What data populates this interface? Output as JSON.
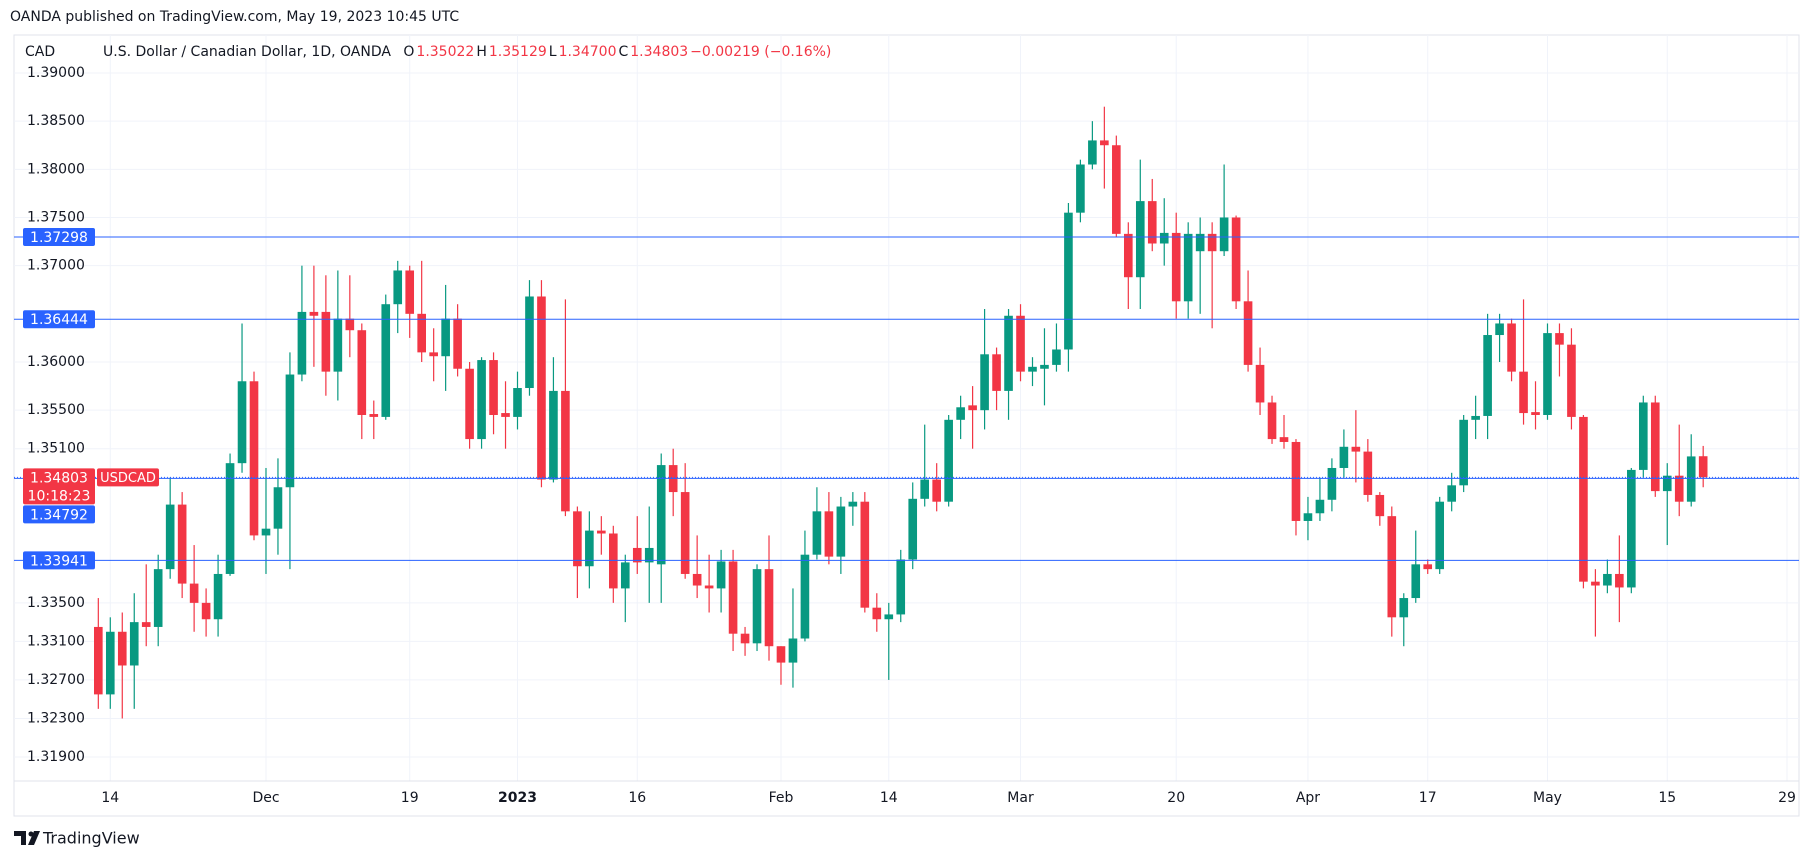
{
  "header": {
    "publisher": "OANDA published on TradingView.com, May 19, 2023 10:45 UTC",
    "currency": "CAD",
    "instrument": "U.S. Dollar / Canadian Dollar, 1D, OANDA",
    "quote": [
      {
        "label": "O",
        "value": "1.35022"
      },
      {
        "label": "H",
        "value": "1.35129"
      },
      {
        "label": "L",
        "value": "1.34700"
      },
      {
        "label": "C",
        "value": "1.34803"
      }
    ],
    "change": "−0.00219 (−0.16%)"
  },
  "footer": {
    "brand": "TradingView"
  },
  "chart_data": {
    "type": "candlestick",
    "up_color": "#089981",
    "down_color": "#f23645",
    "level_color": "#2962ff",
    "grid": true,
    "ylim": [
      1.31651,
      1.39363
    ],
    "xlim": [
      -7.04,
      142.0
    ],
    "yticks": [
      {
        "value": 1.39,
        "label": "1.39000"
      },
      {
        "value": 1.385,
        "label": "1.38500"
      },
      {
        "value": 1.38,
        "label": "1.38000"
      },
      {
        "value": 1.375,
        "label": "1.37500"
      },
      {
        "value": 1.37,
        "label": "1.37000"
      },
      {
        "value": 1.36,
        "label": "1.36000"
      },
      {
        "value": 1.355,
        "label": "1.35500"
      },
      {
        "value": 1.351,
        "label": "1.35100"
      },
      {
        "value": 1.335,
        "label": "1.33500"
      },
      {
        "value": 1.331,
        "label": "1.33100"
      },
      {
        "value": 1.327,
        "label": "1.32700"
      },
      {
        "value": 1.323,
        "label": "1.32300"
      },
      {
        "value": 1.319,
        "label": "1.31900"
      }
    ],
    "xticks": [
      {
        "value": 1,
        "label": "14"
      },
      {
        "value": 14,
        "label": "Dec"
      },
      {
        "value": 26,
        "label": "19"
      },
      {
        "value": 35,
        "label": "2023"
      },
      {
        "value": 45,
        "label": "16"
      },
      {
        "value": 57,
        "label": "Feb"
      },
      {
        "value": 66,
        "label": "14"
      },
      {
        "value": 77,
        "label": "Mar"
      },
      {
        "value": 90,
        "label": "20"
      },
      {
        "value": 101,
        "label": "Apr"
      },
      {
        "value": 111,
        "label": "17"
      },
      {
        "value": 121,
        "label": "May"
      },
      {
        "value": 131,
        "label": "15"
      },
      {
        "value": 141,
        "label": "29"
      }
    ],
    "levels": [
      1.37298,
      1.36444,
      1.34792,
      1.33941
    ],
    "last": {
      "value": 1.34803,
      "symbol": "USDCAD",
      "countdown": "10:18:23"
    },
    "candles": [
      [
        1.3325,
        1.3355,
        1.324,
        1.3255
      ],
      [
        1.3255,
        1.3335,
        1.324,
        1.332
      ],
      [
        1.332,
        1.334,
        1.323,
        1.3285
      ],
      [
        1.3285,
        1.336,
        1.324,
        1.333
      ],
      [
        1.333,
        1.339,
        1.3305,
        1.3325
      ],
      [
        1.3325,
        1.34,
        1.3305,
        1.3385
      ],
      [
        1.3385,
        1.348,
        1.3375,
        1.3452
      ],
      [
        1.3452,
        1.3465,
        1.3355,
        1.337
      ],
      [
        1.337,
        1.341,
        1.332,
        1.335
      ],
      [
        1.335,
        1.3365,
        1.3315,
        1.3333
      ],
      [
        1.3333,
        1.34,
        1.3315,
        1.338
      ],
      [
        1.338,
        1.3505,
        1.3378,
        1.3495
      ],
      [
        1.3495,
        1.364,
        1.3485,
        1.358
      ],
      [
        1.358,
        1.359,
        1.3415,
        1.342
      ],
      [
        1.342,
        1.349,
        1.338,
        1.3427
      ],
      [
        1.3427,
        1.35,
        1.34,
        1.347
      ],
      [
        1.347,
        1.361,
        1.3385,
        1.3587
      ],
      [
        1.3587,
        1.37,
        1.358,
        1.3652
      ],
      [
        1.3652,
        1.37,
        1.3595,
        1.3648
      ],
      [
        1.3652,
        1.369,
        1.3565,
        1.359
      ],
      [
        1.359,
        1.3695,
        1.356,
        1.3645
      ],
      [
        1.3645,
        1.369,
        1.3605,
        1.3633
      ],
      [
        1.3633,
        1.364,
        1.352,
        1.3545
      ],
      [
        1.3546,
        1.356,
        1.352,
        1.3543
      ],
      [
        1.3543,
        1.367,
        1.354,
        1.366
      ],
      [
        1.366,
        1.3705,
        1.363,
        1.3695
      ],
      [
        1.3695,
        1.37,
        1.3625,
        1.365
      ],
      [
        1.365,
        1.3705,
        1.36,
        1.361
      ],
      [
        1.361,
        1.3635,
        1.358,
        1.3606
      ],
      [
        1.3606,
        1.368,
        1.357,
        1.3645
      ],
      [
        1.3645,
        1.366,
        1.3585,
        1.3593
      ],
      [
        1.3593,
        1.36,
        1.351,
        1.352
      ],
      [
        1.352,
        1.3605,
        1.351,
        1.3602
      ],
      [
        1.3602,
        1.361,
        1.3525,
        1.3545
      ],
      [
        1.3547,
        1.358,
        1.351,
        1.3543
      ],
      [
        1.3543,
        1.359,
        1.353,
        1.3573
      ],
      [
        1.3573,
        1.3685,
        1.3565,
        1.3668
      ],
      [
        1.3668,
        1.3685,
        1.347,
        1.3478
      ],
      [
        1.3478,
        1.3605,
        1.3475,
        1.357
      ],
      [
        1.357,
        1.3665,
        1.344,
        1.3445
      ],
      [
        1.3445,
        1.345,
        1.3355,
        1.3388
      ],
      [
        1.3388,
        1.3445,
        1.3365,
        1.3425
      ],
      [
        1.3425,
        1.344,
        1.34,
        1.3422
      ],
      [
        1.3422,
        1.343,
        1.335,
        1.3365
      ],
      [
        1.3365,
        1.34,
        1.333,
        1.3392
      ],
      [
        1.3407,
        1.344,
        1.338,
        1.3392
      ],
      [
        1.3392,
        1.345,
        1.335,
        1.3407
      ],
      [
        1.339,
        1.3505,
        1.335,
        1.3493
      ],
      [
        1.3493,
        1.351,
        1.344,
        1.3465
      ],
      [
        1.3465,
        1.3495,
        1.3375,
        1.338
      ],
      [
        1.338,
        1.342,
        1.3355,
        1.3368
      ],
      [
        1.3368,
        1.34,
        1.334,
        1.3365
      ],
      [
        1.3365,
        1.3405,
        1.334,
        1.3393
      ],
      [
        1.3393,
        1.3405,
        1.33,
        1.3318
      ],
      [
        1.3318,
        1.3325,
        1.3295,
        1.3308
      ],
      [
        1.3308,
        1.339,
        1.33,
        1.3385
      ],
      [
        1.3385,
        1.342,
        1.329,
        1.3305
      ],
      [
        1.3305,
        1.3305,
        1.3265,
        1.3288
      ],
      [
        1.3288,
        1.3365,
        1.3262,
        1.3313
      ],
      [
        1.3313,
        1.3425,
        1.331,
        1.34
      ],
      [
        1.34,
        1.347,
        1.3395,
        1.3445
      ],
      [
        1.3445,
        1.3465,
        1.339,
        1.3398
      ],
      [
        1.3398,
        1.346,
        1.338,
        1.345
      ],
      [
        1.345,
        1.3465,
        1.343,
        1.3455
      ],
      [
        1.3455,
        1.3465,
        1.334,
        1.3345
      ],
      [
        1.3345,
        1.336,
        1.332,
        1.3333
      ],
      [
        1.3333,
        1.335,
        1.327,
        1.3338
      ],
      [
        1.3338,
        1.3405,
        1.333,
        1.3395
      ],
      [
        1.3395,
        1.3475,
        1.3385,
        1.3458
      ],
      [
        1.3458,
        1.3535,
        1.345,
        1.3478
      ],
      [
        1.3478,
        1.3495,
        1.3445,
        1.3455
      ],
      [
        1.3455,
        1.3545,
        1.345,
        1.354
      ],
      [
        1.354,
        1.3565,
        1.352,
        1.3553
      ],
      [
        1.3555,
        1.3575,
        1.351,
        1.355
      ],
      [
        1.355,
        1.3655,
        1.353,
        1.3608
      ],
      [
        1.3608,
        1.3615,
        1.355,
        1.357
      ],
      [
        1.357,
        1.3655,
        1.354,
        1.3648
      ],
      [
        1.3648,
        1.366,
        1.358,
        1.359
      ],
      [
        1.359,
        1.3605,
        1.3575,
        1.3595
      ],
      [
        1.3593,
        1.3635,
        1.3555,
        1.3597
      ],
      [
        1.3597,
        1.364,
        1.359,
        1.3613
      ],
      [
        1.3613,
        1.3765,
        1.359,
        1.3755
      ],
      [
        1.3755,
        1.381,
        1.3745,
        1.3805
      ],
      [
        1.3805,
        1.385,
        1.38,
        1.383
      ],
      [
        1.383,
        1.3865,
        1.378,
        1.3825
      ],
      [
        1.3825,
        1.3835,
        1.373,
        1.3733
      ],
      [
        1.3733,
        1.3745,
        1.3655,
        1.3688
      ],
      [
        1.3688,
        1.381,
        1.3655,
        1.3767
      ],
      [
        1.3767,
        1.379,
        1.3715,
        1.3723
      ],
      [
        1.3723,
        1.377,
        1.37,
        1.3734
      ],
      [
        1.3734,
        1.3755,
        1.3645,
        1.3663
      ],
      [
        1.3663,
        1.3745,
        1.3645,
        1.3733
      ],
      [
        1.3715,
        1.375,
        1.365,
        1.3733
      ],
      [
        1.3733,
        1.3745,
        1.3635,
        1.3715
      ],
      [
        1.3715,
        1.3805,
        1.371,
        1.375
      ],
      [
        1.375,
        1.3752,
        1.3655,
        1.3663
      ],
      [
        1.3663,
        1.3695,
        1.359,
        1.3597
      ],
      [
        1.3597,
        1.3615,
        1.3545,
        1.3558
      ],
      [
        1.3558,
        1.3565,
        1.3515,
        1.352
      ],
      [
        1.3522,
        1.3545,
        1.351,
        1.3517
      ],
      [
        1.3517,
        1.352,
        1.342,
        1.3435
      ],
      [
        1.3435,
        1.346,
        1.3415,
        1.3443
      ],
      [
        1.3443,
        1.348,
        1.3435,
        1.3457
      ],
      [
        1.3457,
        1.35,
        1.3445,
        1.349
      ],
      [
        1.349,
        1.353,
        1.348,
        1.3512
      ],
      [
        1.3512,
        1.355,
        1.3475,
        1.3507
      ],
      [
        1.3507,
        1.352,
        1.3455,
        1.3462
      ],
      [
        1.3462,
        1.3465,
        1.343,
        1.344
      ],
      [
        1.344,
        1.345,
        1.3315,
        1.3335
      ],
      [
        1.3335,
        1.336,
        1.3305,
        1.3355
      ],
      [
        1.3355,
        1.3425,
        1.335,
        1.339
      ],
      [
        1.339,
        1.3395,
        1.338,
        1.3385
      ],
      [
        1.3385,
        1.346,
        1.338,
        1.3455
      ],
      [
        1.3455,
        1.3485,
        1.3445,
        1.3472
      ],
      [
        1.3472,
        1.3545,
        1.3465,
        1.354
      ],
      [
        1.354,
        1.3565,
        1.352,
        1.3544
      ],
      [
        1.3544,
        1.365,
        1.352,
        1.3628
      ],
      [
        1.3628,
        1.365,
        1.36,
        1.364
      ],
      [
        1.364,
        1.3645,
        1.358,
        1.359
      ],
      [
        1.359,
        1.3665,
        1.3535,
        1.3547
      ],
      [
        1.3548,
        1.358,
        1.353,
        1.3545
      ],
      [
        1.3545,
        1.364,
        1.354,
        1.363
      ],
      [
        1.363,
        1.364,
        1.3585,
        1.3618
      ],
      [
        1.3618,
        1.3635,
        1.353,
        1.3543
      ],
      [
        1.3543,
        1.3545,
        1.3365,
        1.3372
      ],
      [
        1.3372,
        1.3385,
        1.3315,
        1.3368
      ],
      [
        1.3368,
        1.3395,
        1.336,
        1.338
      ],
      [
        1.338,
        1.342,
        1.333,
        1.3366
      ],
      [
        1.3366,
        1.349,
        1.336,
        1.3488
      ],
      [
        1.3488,
        1.3565,
        1.348,
        1.3558
      ],
      [
        1.3558,
        1.3565,
        1.346,
        1.3466
      ],
      [
        1.3466,
        1.3495,
        1.341,
        1.3482
      ],
      [
        1.3482,
        1.3535,
        1.344,
        1.3455
      ],
      [
        1.3455,
        1.3525,
        1.345,
        1.3502
      ],
      [
        1.35022,
        1.35129,
        1.347,
        1.34803
      ]
    ]
  }
}
